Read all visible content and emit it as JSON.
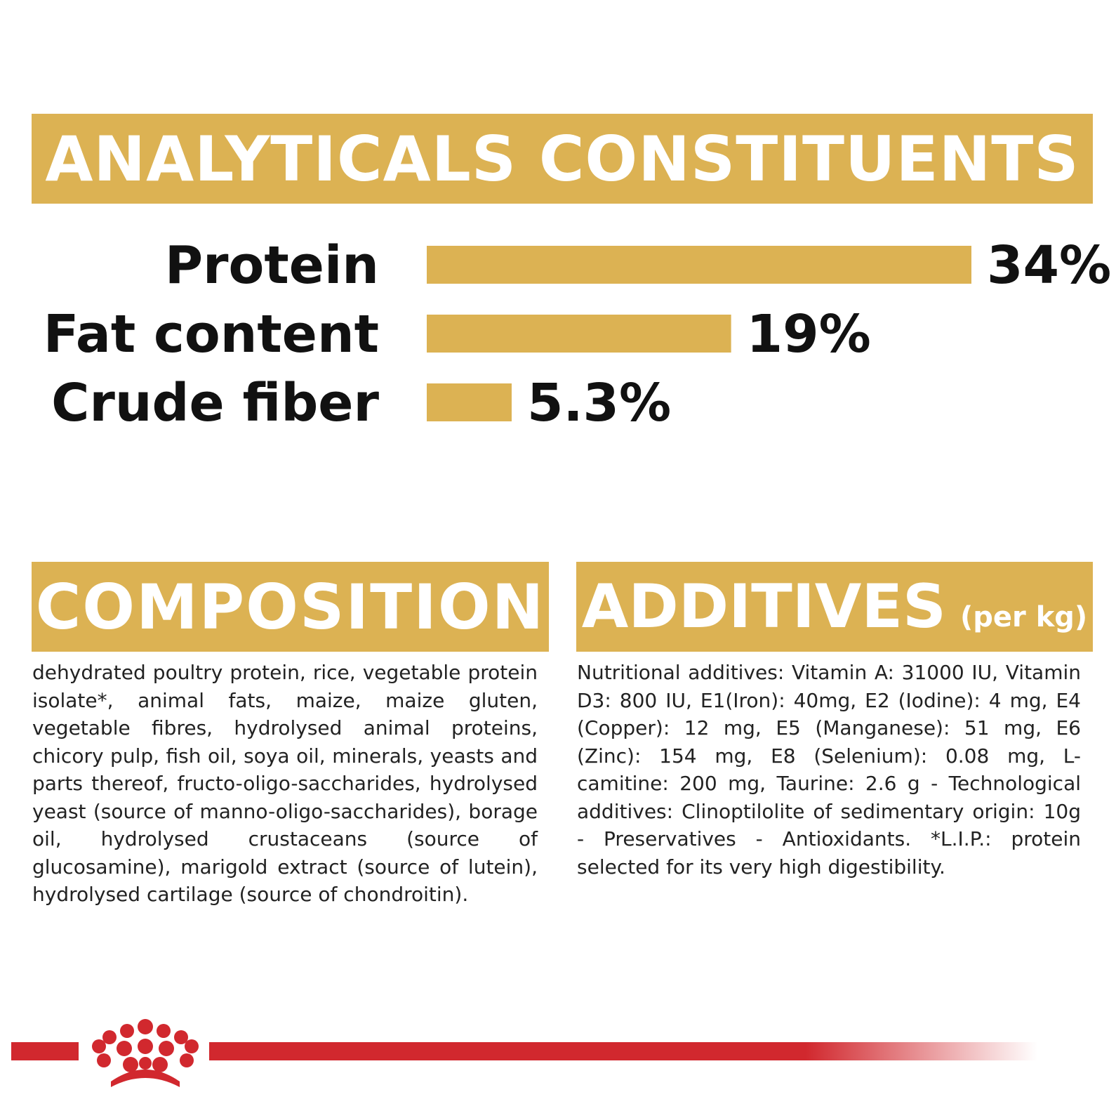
{
  "analytical": {
    "title": "ANALYTICALS CONSTITUENTS"
  },
  "chart_data": {
    "type": "bar",
    "orientation": "horizontal",
    "categories": [
      "Protein",
      "Fat content",
      "Crude fiber"
    ],
    "values": [
      34,
      19,
      5.3
    ],
    "value_labels": [
      "34%",
      "19%",
      "5.3%"
    ],
    "unit": "%",
    "bar_color": "#dcb253",
    "xlim": [
      0,
      34
    ],
    "grid": false,
    "title": "",
    "xlabel": "",
    "ylabel": ""
  },
  "composition": {
    "title": "COMPOSITION",
    "text": "dehydrated poultry protein, rice, vegetable protein isolate*, animal fats, maize, maize gluten, vegetable fibres, hydrolysed animal proteins, chicory pulp, fish oil, soya oil, minerals, yeasts and parts thereof, fructo-oligo-saccharides, hydrolysed yeast (source of manno-oligo-saccharides), borage oil, hydrolysed crustaceans (source of glucosamine), marigold extract (source of lutein), hydrolysed cartilage (source of chondroitin)."
  },
  "additives": {
    "title": "ADDITIVES",
    "subtitle": "(per kg)",
    "text": "Nutritional additives: Vitamin A: 31000 IU, Vitamin D3: 800 IU, E1(Iron): 40mg, E2 (Iodine): 4 mg, E4 (Copper): 12 mg, E5 (Manganese): 51 mg, E6 (Zinc): 154 mg, E8 (Selenium): 0.08 mg, L-camitine: 200 mg, Taurine: 2.6 g - Technological additives: Clinoptilolite of sedimentary origin: 10g - Preservatives - Antioxidants. *L.I.P.: protein selected for its very high digestibility."
  },
  "colors": {
    "gold": "#dcb253",
    "brand_red": "#d1282e"
  },
  "icons": {
    "brand_logo": "crown-icon"
  }
}
